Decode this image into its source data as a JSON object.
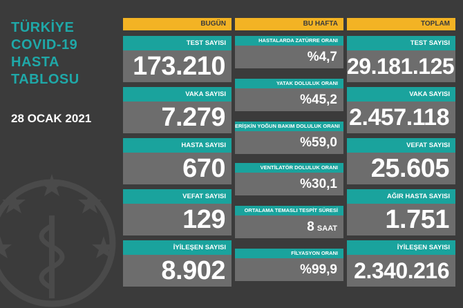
{
  "title_lines": [
    "TÜRKİYE",
    "COVID-19",
    "HASTA",
    "TABLOSU"
  ],
  "date": "28 OCAK 2021",
  "columns": {
    "bugun": {
      "header": "BUGÜN",
      "items": [
        {
          "label": "TEST SAYISI",
          "value": "173.210"
        },
        {
          "label": "VAKA SAYISI",
          "value": "7.279"
        },
        {
          "label": "HASTA SAYISI",
          "value": "670"
        },
        {
          "label": "VEFAT SAYISI",
          "value": "129"
        },
        {
          "label": "İYİLEŞEN SAYISI",
          "value": "8.902"
        }
      ]
    },
    "bu_hafta": {
      "header": "BU HAFTA",
      "items": [
        {
          "label": "HASTALARDA ZATÜRRE ORANI",
          "value": "%4,7"
        },
        {
          "label": "YATAK DOLULUK ORANI",
          "value": "%45,2"
        },
        {
          "label": "ERİŞKİN YOĞUN BAKIM DOLULUK ORANI",
          "value": "%59,0"
        },
        {
          "label": "VENTİLATÖR DOLULUK ORANI",
          "value": "%30,1"
        },
        {
          "label": "ORTALAMA TEMASLI TESPİT SÜRESİ",
          "value": "8",
          "unit": "SAAT"
        },
        {
          "label": "FİLYASYON ORANI",
          "value": "%99,9"
        }
      ]
    },
    "toplam": {
      "header": "TOPLAM",
      "items": [
        {
          "label": "TEST SAYISI",
          "value": "29.181.125"
        },
        {
          "label": "VAKA SAYISI",
          "value": "2.457.118"
        },
        {
          "label": "VEFAT SAYISI",
          "value": "25.605"
        },
        {
          "label": "AĞIR HASTA SAYISI",
          "value": "1.751"
        },
        {
          "label": "İYİLEŞEN SAYISI",
          "value": "2.340.216"
        }
      ]
    }
  },
  "colors": {
    "background": "#3b3b3b",
    "header": "#f3b324",
    "label": "#1aa39d",
    "value": "#6d6d6d",
    "title": "#1fa8a8"
  }
}
